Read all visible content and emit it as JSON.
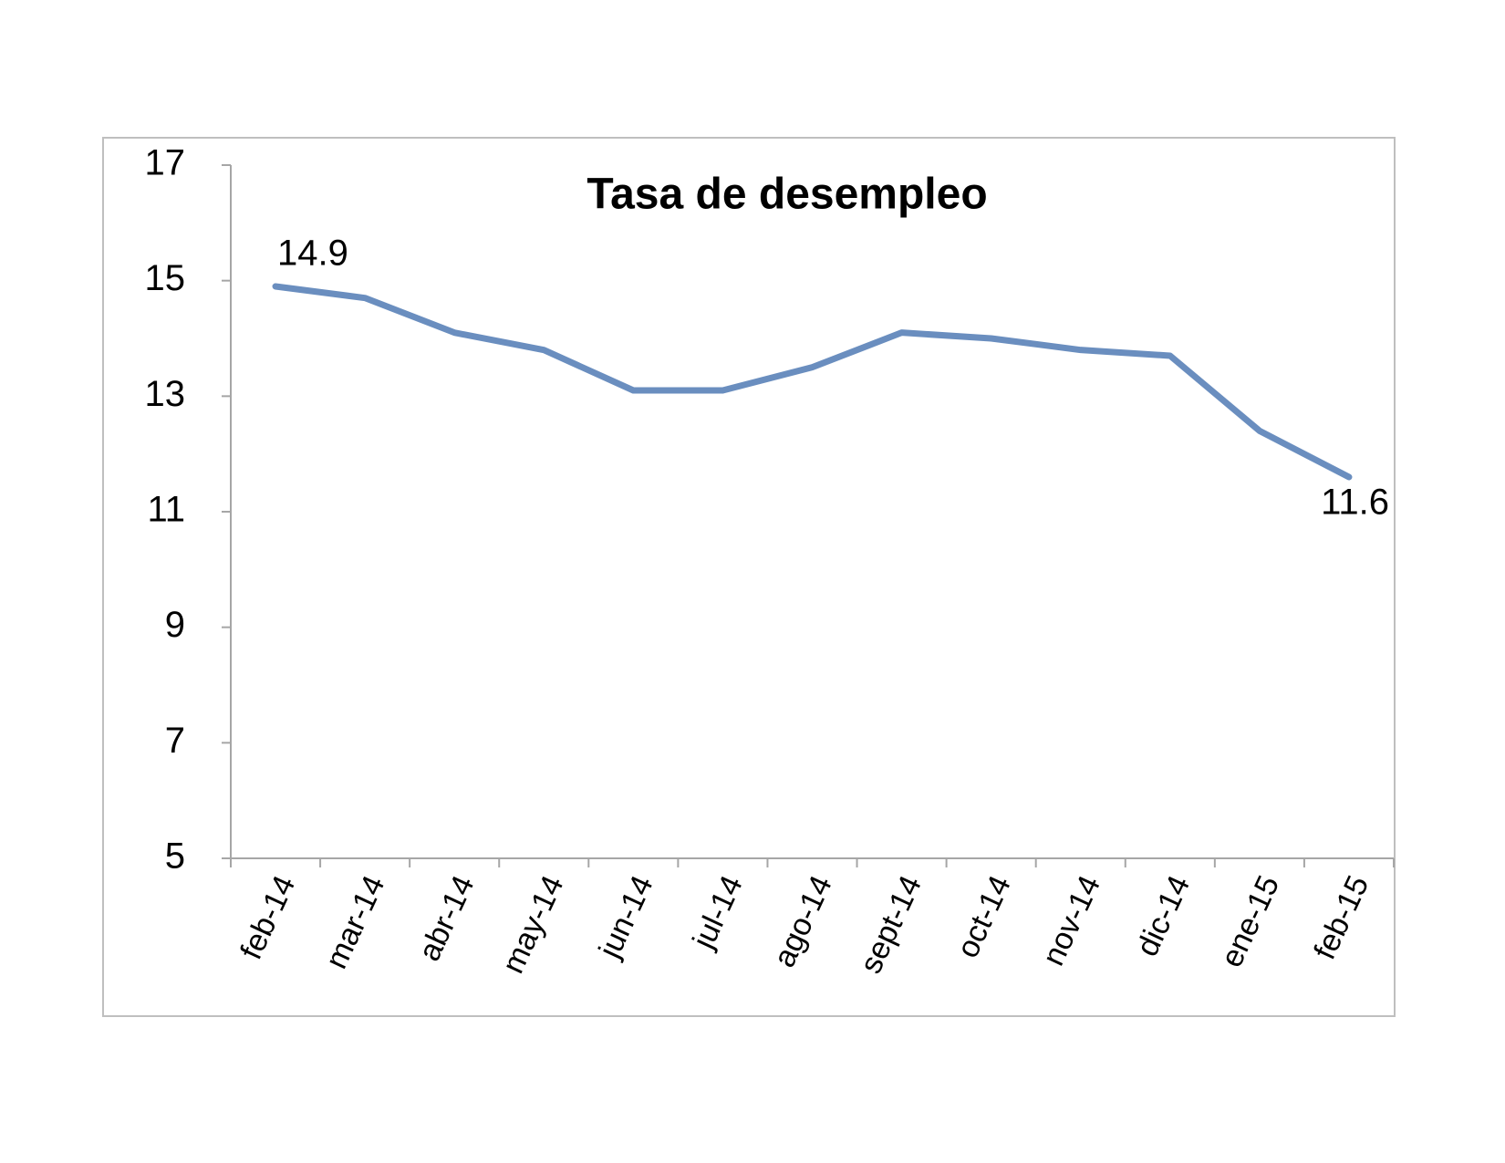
{
  "chart_data": {
    "type": "line",
    "title": "Tasa de desempleo",
    "categories": [
      "feb-14",
      "mar-14",
      "abr-14",
      "may-14",
      "jun-14",
      "jul-14",
      "ago-14",
      "sept-14",
      "oct-14",
      "nov-14",
      "dic-14",
      "ene-15",
      "feb-15"
    ],
    "values": [
      14.9,
      14.7,
      14.1,
      13.8,
      13.1,
      13.1,
      13.5,
      14.1,
      14.0,
      13.8,
      13.7,
      12.4,
      11.6
    ],
    "color": "#6a8ebf",
    "ylim": [
      5,
      17
    ],
    "yticks": [
      5,
      7,
      9,
      11,
      13,
      15,
      17
    ],
    "grid": false
  }
}
